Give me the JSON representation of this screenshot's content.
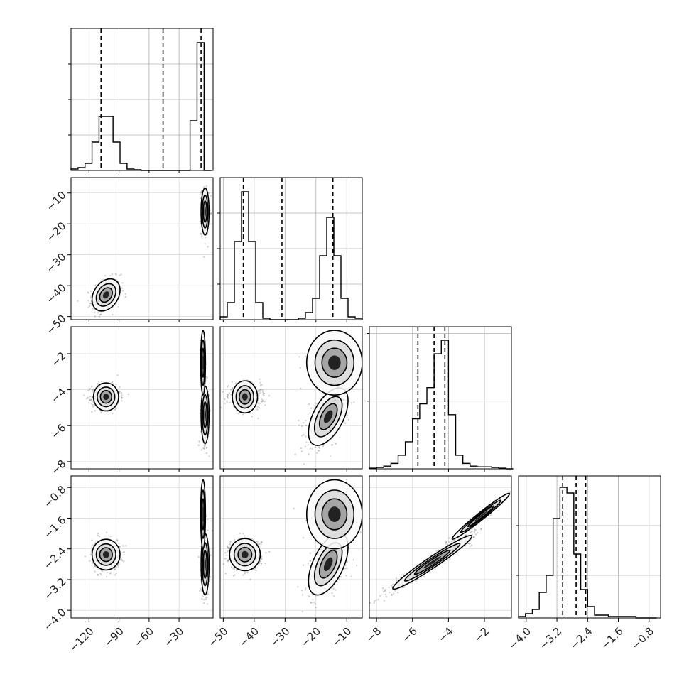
{
  "chart_data": {
    "type": "corner",
    "grid": true,
    "variables": [
      {
        "id": "p0",
        "range": [
          -138,
          4
        ],
        "ticks": [
          -120,
          -90,
          -60,
          -30
        ],
        "tick_labels": [
          "−120",
          "−90",
          "−60",
          "−30"
        ],
        "quantiles": [
          -108,
          -46,
          -8
        ]
      },
      {
        "id": "p1",
        "range": [
          -51,
          -5
        ],
        "ticks": [
          -50,
          -40,
          -30,
          -20,
          -10
        ],
        "tick_labels": [
          "−50",
          "−40",
          "−30",
          "−20",
          "−10"
        ],
        "quantiles": [
          -43.5,
          -31,
          -14.5
        ]
      },
      {
        "id": "p2",
        "range": [
          -8.4,
          -0.5
        ],
        "ticks": [
          -8,
          -6,
          -4,
          -2
        ],
        "tick_labels": [
          "−8",
          "−6",
          "−4",
          "−2"
        ],
        "quantiles": [
          -5.7,
          -4.8,
          -4.2
        ]
      },
      {
        "id": "p3",
        "range": [
          -4.2,
          -0.5
        ],
        "ticks": [
          -4.0,
          -3.2,
          -2.4,
          -1.6,
          -0.8
        ],
        "tick_labels": [
          "−4.0",
          "−3.2",
          "−2.4",
          "−1.6",
          "−0.8"
        ],
        "quantiles": [
          -3.05,
          -2.7,
          -2.45
        ]
      }
    ],
    "histograms": [
      {
        "var": 0,
        "bins": [
          -138,
          -131,
          -124,
          -117,
          -110,
          -103,
          -96,
          -89,
          -82,
          -75,
          -68,
          -61,
          -54,
          -47,
          -40,
          -33,
          -26,
          -19,
          -12,
          -5,
          2
        ],
        "counts": [
          0.01,
          0.02,
          0.05,
          0.2,
          0.38,
          0.38,
          0.2,
          0.05,
          0.01,
          0.005,
          0,
          0,
          0,
          0,
          0,
          0,
          0,
          0.35,
          0.9,
          0
        ],
        "ylim": [
          0,
          1
        ],
        "yticks": [
          0.25,
          0.5,
          0.75
        ]
      },
      {
        "var": 1,
        "bins": [
          -51,
          -48.7,
          -46.4,
          -44.1,
          -41.8,
          -39.5,
          -37.2,
          -34.9,
          -32.6,
          -30.3,
          -28,
          -25.7,
          -23.4,
          -21.1,
          -18.8,
          -16.5,
          -14.2,
          -11.9,
          -9.6,
          -7.3,
          -5
        ],
        "counts": [
          0.02,
          0.12,
          0.55,
          0.9,
          0.55,
          0.12,
          0.01,
          0,
          0,
          0,
          0,
          0.01,
          0.05,
          0.15,
          0.45,
          0.72,
          0.45,
          0.15,
          0.02,
          0.01
        ],
        "ylim": [
          0,
          1
        ],
        "yticks": [
          0.25,
          0.5,
          0.75
        ]
      },
      {
        "var": 2,
        "bins": [
          -8.4,
          -8.0,
          -7.6,
          -7.2,
          -6.8,
          -6.4,
          -6.0,
          -5.6,
          -5.2,
          -4.8,
          -4.4,
          -4.0,
          -3.6,
          -3.2,
          -2.8,
          -2.4,
          -2.0,
          -1.6,
          -1.2,
          -0.8,
          -0.4
        ],
        "counts": [
          0.005,
          0.01,
          0.02,
          0.04,
          0.1,
          0.2,
          0.37,
          0.48,
          0.6,
          0.85,
          0.95,
          0.4,
          0.1,
          0.04,
          0.02,
          0.015,
          0.015,
          0.01,
          0.005,
          0
        ],
        "ylim": [
          0,
          1.05
        ],
        "yticks": [
          0.5,
          1.0
        ]
      },
      {
        "var": 3,
        "bins": [
          -4.2,
          -4.02,
          -3.84,
          -3.66,
          -3.48,
          -3.3,
          -3.12,
          -2.94,
          -2.76,
          -2.58,
          -2.4,
          -2.22,
          -2.04,
          -1.86,
          -1.68,
          -1.5,
          -1.32,
          -1.14,
          -0.96,
          -0.78,
          -0.6
        ],
        "counts": [
          0.01,
          0.03,
          0.06,
          0.18,
          0.3,
          0.7,
          0.92,
          0.88,
          0.45,
          0.2,
          0.08,
          0.02,
          0.02,
          0.01,
          0.01,
          0.01,
          0.01,
          0,
          0,
          0
        ],
        "ylim": [
          0,
          1.0
        ],
        "yticks": [
          0.3,
          0.65
        ]
      }
    ],
    "pairs": [
      {
        "x": 0,
        "y": 1,
        "clusters": [
          {
            "mx": -103,
            "my": -43,
            "sx": 7,
            "sy": 2.6,
            "rho": 0.3,
            "n": 500
          },
          {
            "mx": -4,
            "my": -16,
            "sx": 2,
            "sy": 3.8,
            "rho": 0.0,
            "n": 260
          }
        ]
      },
      {
        "x": 0,
        "y": 2,
        "clusters": [
          {
            "mx": -103,
            "my": -4.4,
            "sx": 7,
            "sy": 0.35,
            "rho": 0.0,
            "n": 500
          },
          {
            "mx": -4,
            "my": -5.4,
            "sx": 2,
            "sy": 0.8,
            "rho": 0.0,
            "n": 260
          },
          {
            "mx": -6,
            "my": -2.5,
            "sx": 1.2,
            "sy": 0.9,
            "rho": 0.0,
            "n": 60
          }
        ]
      },
      {
        "x": 0,
        "y": 3,
        "clusters": [
          {
            "mx": -103,
            "my": -2.55,
            "sx": 7,
            "sy": 0.2,
            "rho": 0.0,
            "n": 500
          },
          {
            "mx": -4,
            "my": -2.8,
            "sx": 2,
            "sy": 0.4,
            "rho": 0.0,
            "n": 260
          },
          {
            "mx": -6,
            "my": -1.5,
            "sx": 1.2,
            "sy": 0.45,
            "rho": 0.0,
            "n": 60
          }
        ]
      },
      {
        "x": 1,
        "y": 2,
        "clusters": [
          {
            "mx": -43,
            "my": -4.4,
            "sx": 2.6,
            "sy": 0.35,
            "rho": 0.0,
            "n": 500
          },
          {
            "mx": -16,
            "my": -5.5,
            "sx": 3.2,
            "sy": 0.8,
            "rho": 0.55,
            "n": 400
          },
          {
            "mx": -14,
            "my": -2.5,
            "sx": 4.5,
            "sy": 0.9,
            "rho": 0.0,
            "n": 90
          }
        ]
      },
      {
        "x": 1,
        "y": 3,
        "clusters": [
          {
            "mx": -43,
            "my": -2.55,
            "sx": 2.6,
            "sy": 0.2,
            "rho": 0.0,
            "n": 500
          },
          {
            "mx": -16,
            "my": -2.8,
            "sx": 3.2,
            "sy": 0.4,
            "rho": 0.55,
            "n": 400
          },
          {
            "mx": -14,
            "my": -1.5,
            "sx": 4.5,
            "sy": 0.45,
            "rho": 0.0,
            "n": 90
          }
        ]
      },
      {
        "x": 2,
        "y": 3,
        "clusters": [
          {
            "mx": -4.9,
            "my": -2.75,
            "sx": 1.1,
            "sy": 0.35,
            "rho": 0.97,
            "n": 700
          },
          {
            "mx": -2.2,
            "my": -1.55,
            "sx": 0.8,
            "sy": 0.3,
            "rho": 0.98,
            "n": 140
          }
        ]
      }
    ]
  }
}
